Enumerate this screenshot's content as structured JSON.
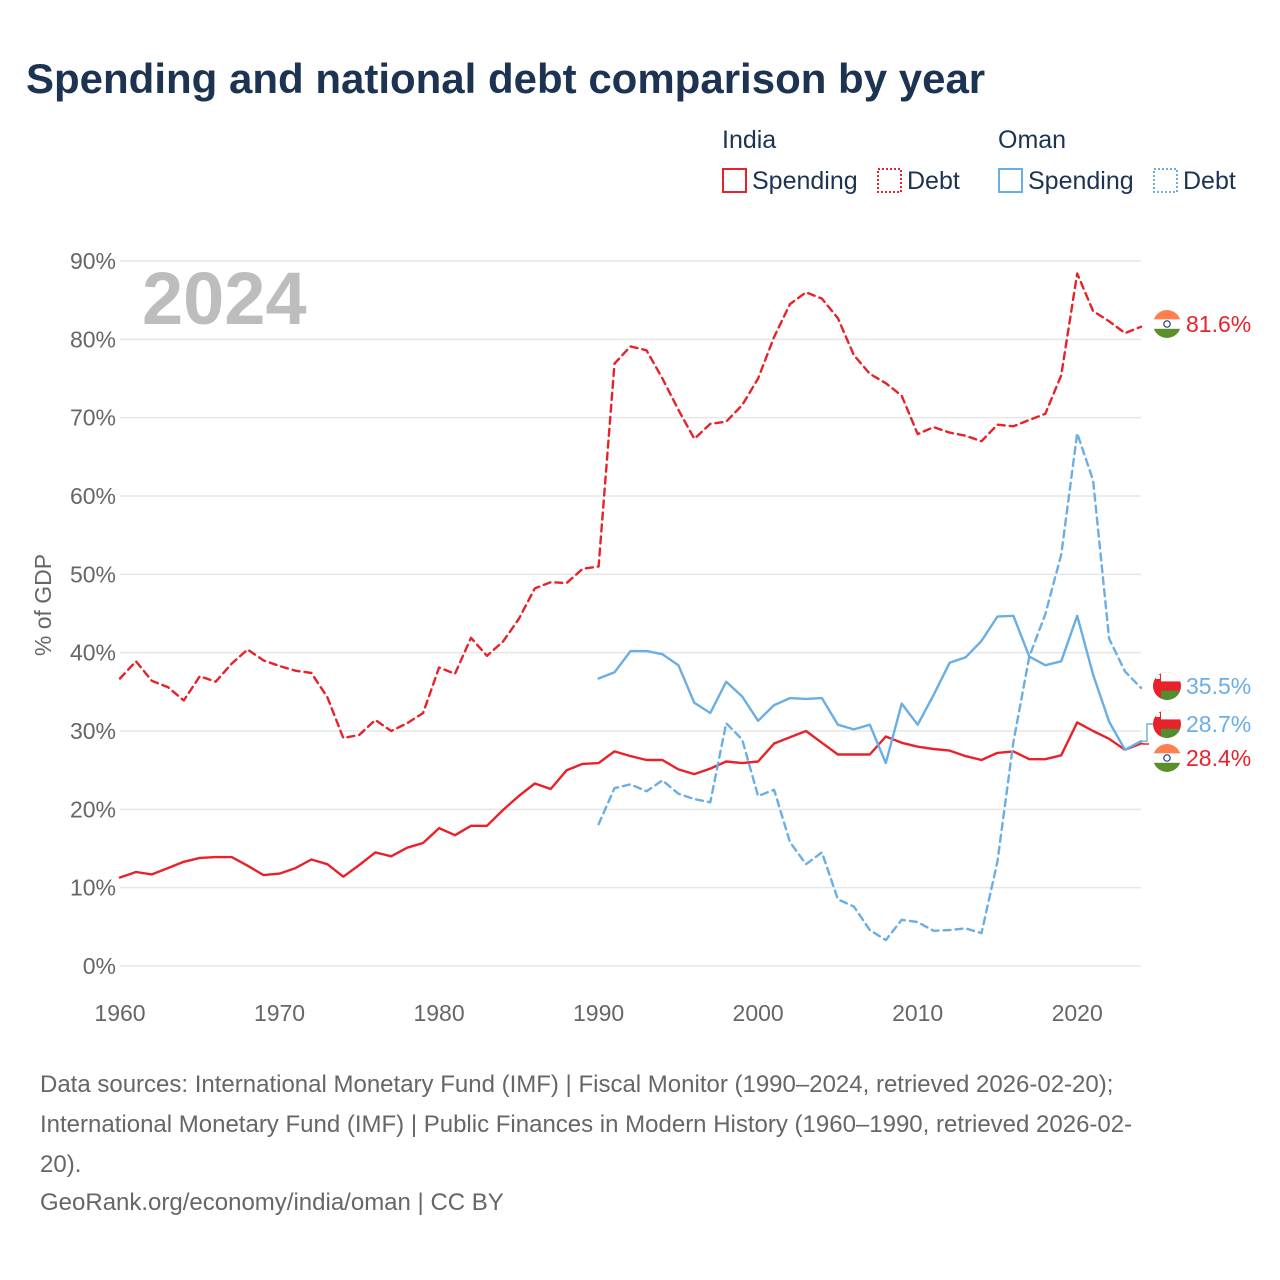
{
  "title": "Spending and national debt comparison by year",
  "year_watermark": "2024",
  "legend": {
    "groups": [
      {
        "country": "India",
        "color": "#e8222a",
        "items": [
          {
            "label": "Spending",
            "style": "solid"
          },
          {
            "label": "Debt",
            "style": "dotted"
          }
        ]
      },
      {
        "country": "Oman",
        "color": "#6aaee6",
        "items": [
          {
            "label": "Spending",
            "style": "solid"
          },
          {
            "label": "Debt",
            "style": "dotted"
          }
        ]
      }
    ]
  },
  "end_labels": [
    {
      "text": "81.6%",
      "color": "#e8222a",
      "value": 81.6,
      "flag": "india"
    },
    {
      "text": "35.5%",
      "color": "#6aaee6",
      "value": 35.5,
      "flag": "oman"
    },
    {
      "text": "28.7%",
      "color": "#6aaee6",
      "value": 28.7,
      "flag": "oman"
    },
    {
      "text": "28.4%",
      "color": "#e8222a",
      "value": 28.4,
      "flag": "india"
    }
  ],
  "footer": {
    "source_lines": [
      "Data sources: International Monetary Fund (IMF) | Fiscal Monitor (1990–2024, retrieved 2026-02-20);",
      "International Monetary Fund (IMF) | Public Finances in Modern History (1960–1990, retrieved 2026-02-",
      "20)."
    ],
    "credit": "GeoRank.org/economy/india/oman | CC BY"
  },
  "chart_data": {
    "type": "line",
    "title": "Spending and national debt comparison by year",
    "xlabel": "",
    "ylabel": "% of GDP",
    "xlim": [
      1960,
      2024
    ],
    "ylim": [
      0,
      90
    ],
    "x_ticks": [
      1960,
      1970,
      1980,
      1990,
      2000,
      2010,
      2020
    ],
    "y_ticks": [
      0,
      10,
      20,
      30,
      40,
      50,
      60,
      70,
      80,
      90
    ],
    "y_tick_labels": [
      "0%",
      "10%",
      "20%",
      "30%",
      "40%",
      "50%",
      "60%",
      "70%",
      "80%",
      "90%"
    ],
    "grid": true,
    "series": [
      {
        "name": "India Spending",
        "country": "India",
        "measure": "Spending",
        "color": "#e8222a",
        "dash": "solid",
        "start_year": 1960,
        "values": [
          11.3,
          12.0,
          11.7,
          12.5,
          13.3,
          13.8,
          13.9,
          13.9,
          12.8,
          11.6,
          11.8,
          12.5,
          13.6,
          13.0,
          11.4,
          12.9,
          14.5,
          14.0,
          15.1,
          15.7,
          17.6,
          16.7,
          17.9,
          17.9,
          19.9,
          21.7,
          23.3,
          22.6,
          25.0,
          25.8,
          25.9,
          27.4,
          26.8,
          26.3,
          26.3,
          25.1,
          24.5,
          25.2,
          26.1,
          25.9,
          26.1,
          28.4,
          29.2,
          30.0,
          28.5,
          27.0,
          27.0,
          27.0,
          29.3,
          28.5,
          28.0,
          27.7,
          27.5,
          26.8,
          26.3,
          27.2,
          27.4,
          26.4,
          26.4,
          26.9,
          31.1,
          30.0,
          29.0,
          27.6,
          28.4
        ]
      },
      {
        "name": "India Debt",
        "country": "India",
        "measure": "Debt",
        "color": "#e8222a",
        "dash": "dashed",
        "start_year": 1960,
        "values": [
          36.7,
          38.9,
          36.4,
          35.6,
          33.9,
          37.0,
          36.3,
          38.6,
          40.4,
          39.0,
          38.3,
          37.7,
          37.4,
          34.3,
          29.1,
          29.5,
          31.4,
          30.0,
          31.0,
          32.3,
          38.1,
          37.3,
          41.9,
          39.6,
          41.4,
          44.3,
          48.2,
          49.0,
          48.9,
          50.7,
          51.0,
          76.9,
          79.1,
          78.6,
          75.0,
          71.0,
          67.3,
          69.2,
          69.5,
          71.6,
          75.0,
          80.3,
          84.5,
          86.0,
          85.2,
          82.7,
          78.0,
          75.6,
          74.4,
          72.8,
          67.9,
          68.8,
          68.1,
          67.7,
          67.0,
          69.1,
          68.9,
          69.7,
          70.5,
          75.4,
          88.4,
          83.6,
          82.3,
          80.8,
          81.6
        ]
      },
      {
        "name": "Oman Spending",
        "country": "Oman",
        "measure": "Spending",
        "color": "#6aaee6",
        "dash": "solid",
        "start_year": 1990,
        "values": [
          36.7,
          37.5,
          40.2,
          40.2,
          39.8,
          38.4,
          33.6,
          32.3,
          36.3,
          34.4,
          31.3,
          33.3,
          34.2,
          34.1,
          34.2,
          30.8,
          30.2,
          30.8,
          25.9,
          33.5,
          30.8,
          34.6,
          38.7,
          39.4,
          41.5,
          44.6,
          44.7,
          39.5,
          38.4,
          38.9,
          44.7,
          37.2,
          31.2,
          27.6,
          28.7
        ]
      },
      {
        "name": "Oman Debt",
        "country": "Oman",
        "measure": "Debt",
        "color": "#6aaee6",
        "dash": "dashed",
        "start_year": 1990,
        "values": [
          18.1,
          22.7,
          23.2,
          22.3,
          23.7,
          22.0,
          21.3,
          20.9,
          31.0,
          28.9,
          21.7,
          22.5,
          15.8,
          13.0,
          14.5,
          8.5,
          7.6,
          4.6,
          3.3,
          5.9,
          5.6,
          4.5,
          4.6,
          4.8,
          4.2,
          13.3,
          28.6,
          39.5,
          44.9,
          52.5,
          68.0,
          62.0,
          41.8,
          37.6,
          35.5
        ]
      }
    ]
  }
}
